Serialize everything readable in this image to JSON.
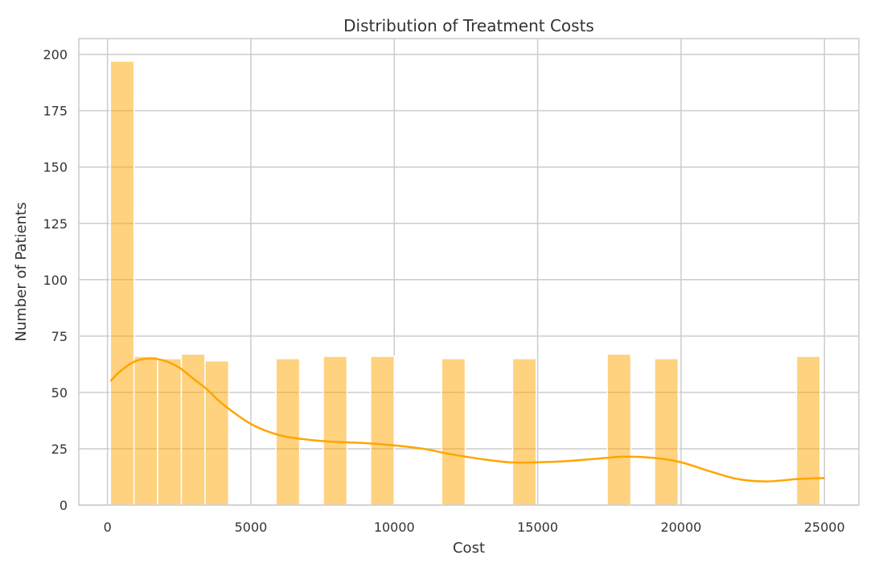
{
  "chart_data": {
    "type": "bar",
    "title": "Distribution of Treatment Costs",
    "xlabel": "Cost",
    "ylabel": "Number of Patients",
    "xlim": [
      -1000,
      26200
    ],
    "ylim": [
      0,
      207
    ],
    "xticks": [
      0,
      5000,
      10000,
      15000,
      20000,
      25000
    ],
    "yticks": [
      0,
      25,
      50,
      75,
      100,
      125,
      150,
      175,
      200
    ],
    "grid": true,
    "bin_width": 825,
    "bins": [
      {
        "start": 100,
        "count": 197
      },
      {
        "start": 925,
        "count": 66
      },
      {
        "start": 1750,
        "count": 65
      },
      {
        "start": 2575,
        "count": 67
      },
      {
        "start": 3400,
        "count": 64
      },
      {
        "start": 5875,
        "count": 65
      },
      {
        "start": 7525,
        "count": 66
      },
      {
        "start": 9175,
        "count": 66
      },
      {
        "start": 11650,
        "count": 65
      },
      {
        "start": 14125,
        "count": 65
      },
      {
        "start": 17425,
        "count": 67
      },
      {
        "start": 19075,
        "count": 65
      },
      {
        "start": 24025,
        "count": 66
      }
    ],
    "bar_color": "#ffa500",
    "kde_color": "#ffa500",
    "kde": {
      "x": [
        100,
        500,
        1000,
        1500,
        2000,
        2500,
        3000,
        3500,
        4000,
        5000,
        6000,
        7000,
        8000,
        9000,
        10000,
        11000,
        12000,
        13000,
        14000,
        15000,
        16000,
        17000,
        18000,
        19000,
        20000,
        21000,
        22000,
        23000,
        24000,
        25000
      ],
      "y": [
        55,
        60,
        64,
        65,
        64,
        61,
        56,
        51,
        45,
        36,
        31,
        29,
        28,
        27.5,
        26.5,
        25,
        22.5,
        20.5,
        19,
        19,
        19.5,
        20.5,
        21.5,
        21,
        19,
        15,
        11.5,
        10.5,
        11.5,
        12
      ]
    }
  }
}
